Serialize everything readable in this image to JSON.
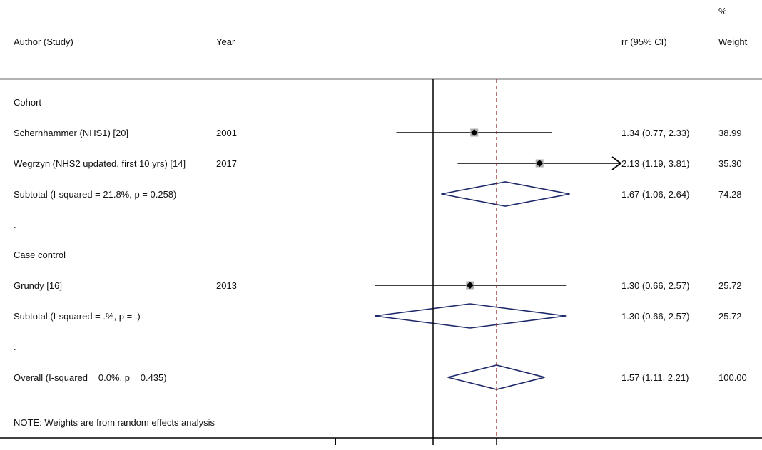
{
  "headers": {
    "study": "Author (Study)",
    "year": "Year",
    "effect": "rr (95% CI)",
    "weight_pct": "%",
    "weight": "Weight"
  },
  "chart_data": {
    "type": "forest",
    "x_null": 1,
    "x_pooled": 1.57,
    "x_scale": "log",
    "rows": [
      {
        "kind": "group",
        "label": "Cohort"
      },
      {
        "kind": "study",
        "label": "Schernhammer (NHS1) [20]",
        "year": "2001",
        "rr": 1.34,
        "lo": 0.77,
        "hi": 2.33,
        "ci_text": "1.34 (0.77, 2.33)",
        "weight": "38.99",
        "arrow_right": false
      },
      {
        "kind": "study",
        "label": "Wegrzyn (NHS2 updated, first 10 yrs) [14]",
        "year": "2017",
        "rr": 2.13,
        "lo": 1.19,
        "hi": 3.81,
        "ci_text": "2.13 (1.19, 3.81)",
        "weight": "35.30",
        "arrow_right": true
      },
      {
        "kind": "subtotal",
        "label": "Subtotal  (I-squared = 21.8%, p = 0.258)",
        "rr": 1.67,
        "lo": 1.06,
        "hi": 2.64,
        "ci_text": "1.67 (1.06, 2.64)",
        "weight": "74.28"
      },
      {
        "kind": "spacer",
        "label": "."
      },
      {
        "kind": "group",
        "label": "Case control"
      },
      {
        "kind": "study",
        "label": "Grundy [16]",
        "year": "2013",
        "rr": 1.3,
        "lo": 0.66,
        "hi": 2.57,
        "ci_text": "1.30 (0.66, 2.57)",
        "weight": "25.72",
        "arrow_right": false
      },
      {
        "kind": "subtotal",
        "label": "Subtotal  (I-squared = .%, p = .)",
        "rr": 1.3,
        "lo": 0.66,
        "hi": 2.57,
        "ci_text": "1.30 (0.66, 2.57)",
        "weight": "25.72"
      },
      {
        "kind": "spacer",
        "label": "."
      },
      {
        "kind": "overall",
        "label": "Overall  (I-squared = 0.0%, p = 0.435)",
        "rr": 1.57,
        "lo": 1.11,
        "hi": 2.21,
        "ci_text": "1.57 (1.11, 2.21)",
        "weight": "100.00"
      }
    ],
    "note": "NOTE: Weights are from random effects analysis",
    "x_ticks": [
      0.5,
      1,
      1.57
    ],
    "colors": {
      "diamond": "#1f2a6b",
      "pooled_line": "#8b1a1a",
      "marker_box": "#b0b0b0",
      "axis": "#000000",
      "header_rule": "#999999"
    }
  }
}
